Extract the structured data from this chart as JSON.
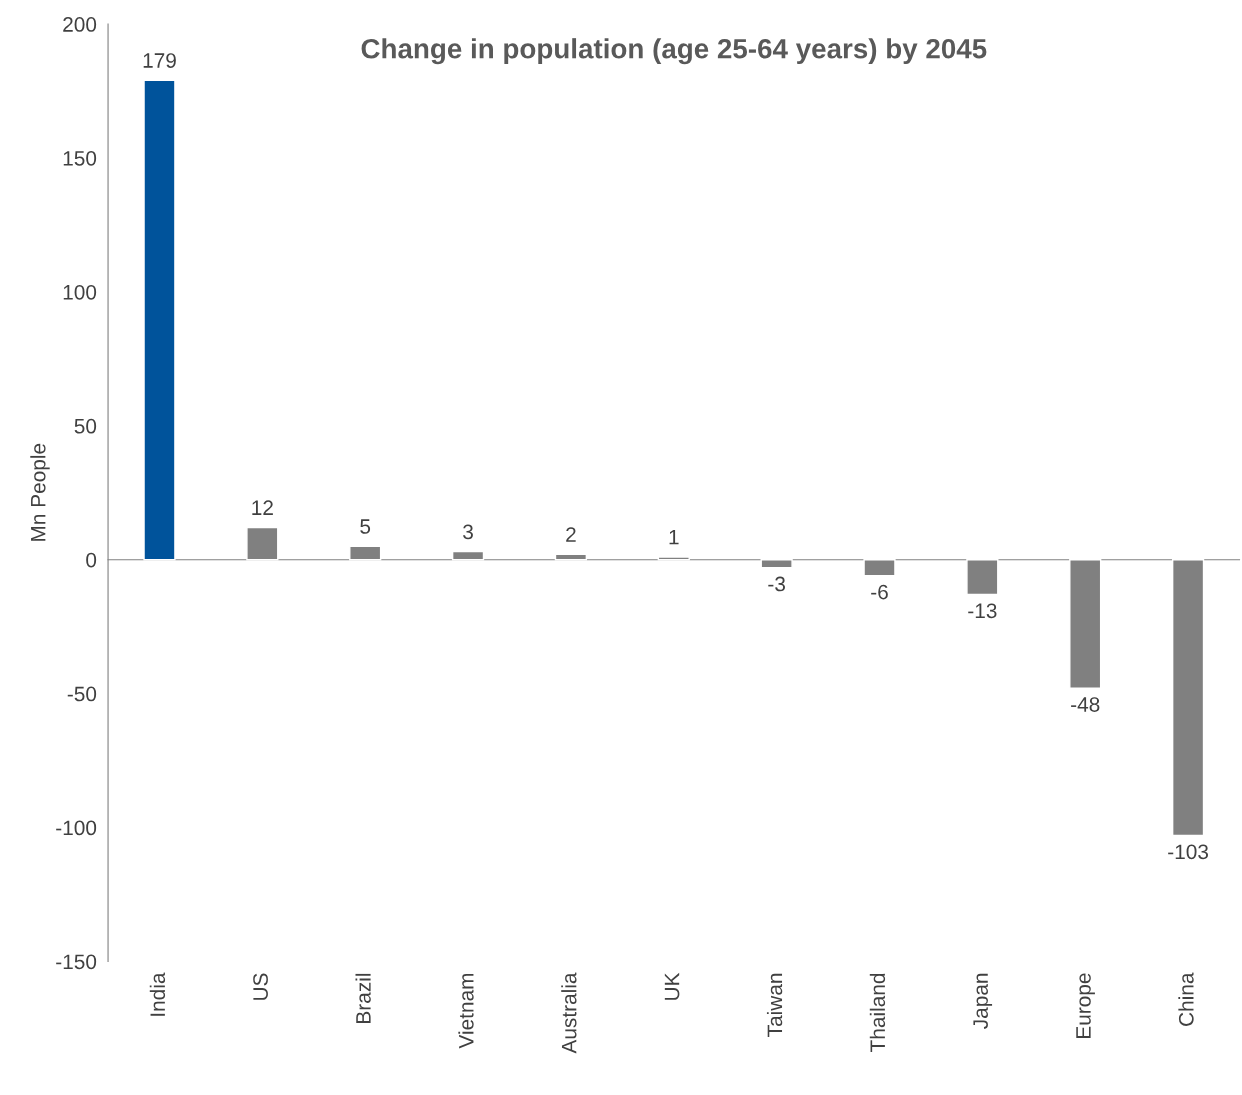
{
  "chart_data": {
    "type": "bar",
    "title": "Change in population (age 25-64 years) by 2045",
    "ylabel": "Mn People",
    "categories": [
      "India",
      "US",
      "Brazil",
      "Vietnam",
      "Australia",
      "UK",
      "Taiwan",
      "Thailand",
      "Japan",
      "Europe",
      "China"
    ],
    "values": [
      179,
      12,
      5,
      3,
      2,
      1,
      -3,
      -6,
      -13,
      -48,
      -103
    ],
    "colors": [
      "#00539b",
      "#808080",
      "#808080",
      "#808080",
      "#808080",
      "#808080",
      "#808080",
      "#808080",
      "#808080",
      "#808080",
      "#808080"
    ],
    "ylim": [
      -150,
      200
    ],
    "yticks": [
      -150,
      -100,
      -50,
      0,
      50,
      100,
      150,
      200
    ],
    "legend": false,
    "data_labels": true
  }
}
